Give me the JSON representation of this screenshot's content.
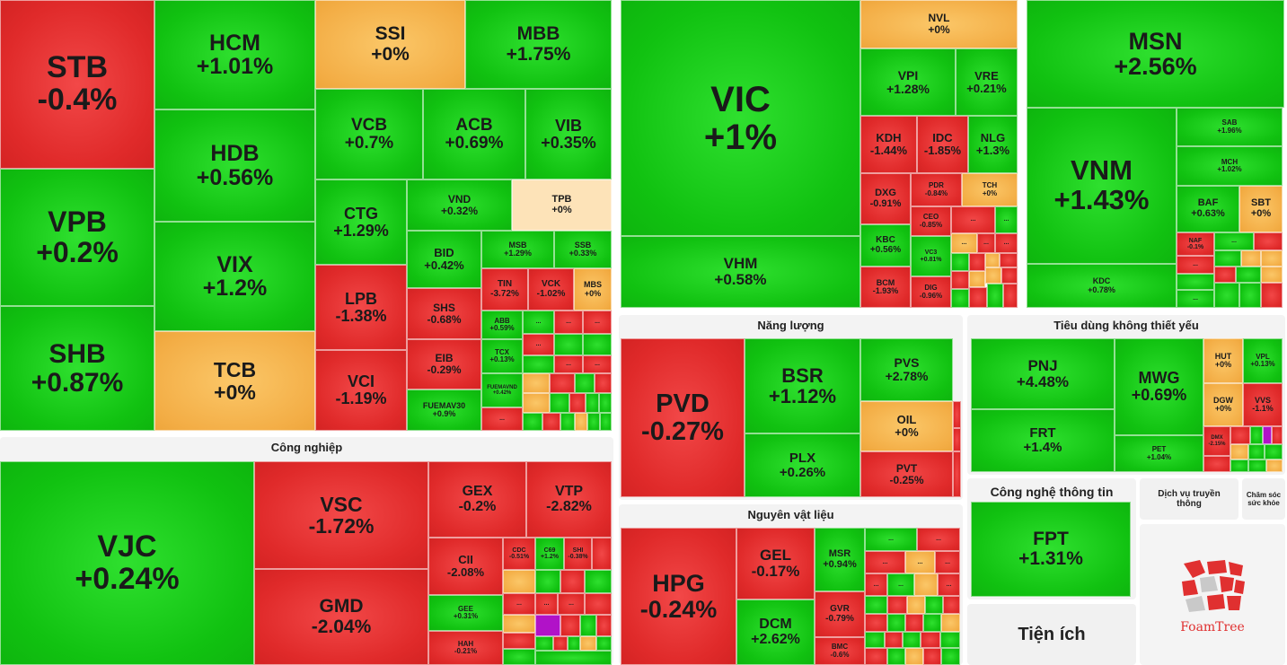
{
  "colors": {
    "up": "#11c211",
    "down": "#e02a2a",
    "flat": "#f3ad45",
    "ceiling": "#b112c8"
  },
  "sections": {
    "industrial": "Công nghiệp",
    "energy": "Năng lượng",
    "consumer_discretionary": "Tiêu dùng không thiết yếu",
    "materials": "Nguyên vật liệu",
    "it": "Công nghệ thông tin",
    "media": "Dịch vụ truyền thông",
    "health": "Chăm sóc sức khỏe",
    "utilities": "Tiện ích"
  },
  "logo": {
    "text": "FoamTree",
    "icon": "foamtree-icon"
  },
  "finance": [
    {
      "s": "STB",
      "c": "-0.4%"
    },
    {
      "s": "VPB",
      "c": "+0.2%"
    },
    {
      "s": "SHB",
      "c": "+0.87%"
    },
    {
      "s": "HCM",
      "c": "+1.01%"
    },
    {
      "s": "HDB",
      "c": "+0.56%"
    },
    {
      "s": "VIX",
      "c": "+1.2%"
    },
    {
      "s": "TCB",
      "c": "+0%"
    },
    {
      "s": "SSI",
      "c": "+0%"
    },
    {
      "s": "MBB",
      "c": "+1.75%"
    },
    {
      "s": "VCB",
      "c": "+0.7%"
    },
    {
      "s": "ACB",
      "c": "+0.69%"
    },
    {
      "s": "VIB",
      "c": "+0.35%"
    },
    {
      "s": "CTG",
      "c": "+1.29%"
    },
    {
      "s": "LPB",
      "c": "-1.38%"
    },
    {
      "s": "VCI",
      "c": "-1.19%"
    },
    {
      "s": "VND",
      "c": "+0.32%"
    },
    {
      "s": "TPB",
      "c": "+0%"
    },
    {
      "s": "BID",
      "c": "+0.42%"
    },
    {
      "s": "MSB",
      "c": "+1.29%"
    },
    {
      "s": "SSB",
      "c": "+0.33%"
    },
    {
      "s": "SHS",
      "c": "-0.68%"
    },
    {
      "s": "TIN",
      "c": "-3.72%"
    },
    {
      "s": "VCK",
      "c": "-1.02%"
    },
    {
      "s": "MBS",
      "c": "+0%"
    },
    {
      "s": "EIB",
      "c": "-0.29%"
    },
    {
      "s": "ABB",
      "c": "+0.59%"
    },
    {
      "s": "TCX",
      "c": "+0.13%"
    },
    {
      "s": "FUEMAV30",
      "c": "+0.9%"
    },
    {
      "s": "FUEMAVND",
      "c": "+0.42%"
    }
  ],
  "real_estate": [
    {
      "s": "VIC",
      "c": "+1%"
    },
    {
      "s": "VHM",
      "c": "+0.58%"
    },
    {
      "s": "NVL",
      "c": "+0%"
    },
    {
      "s": "VPI",
      "c": "+1.28%"
    },
    {
      "s": "VRE",
      "c": "+0.21%"
    },
    {
      "s": "KDH",
      "c": "-1.44%"
    },
    {
      "s": "IDC",
      "c": "-1.85%"
    },
    {
      "s": "NLG",
      "c": "+1.3%"
    },
    {
      "s": "DXG",
      "c": "-0.91%"
    },
    {
      "s": "PDR",
      "c": "-0.84%"
    },
    {
      "s": "TCH",
      "c": "+0%"
    },
    {
      "s": "CEO",
      "c": "-0.85%"
    },
    {
      "s": "KBC",
      "c": "+0.56%"
    },
    {
      "s": "VC3",
      "c": "+0.81%"
    },
    {
      "s": "BCM",
      "c": "-1.93%"
    },
    {
      "s": "DIG",
      "c": "-0.96%"
    }
  ],
  "staples": [
    {
      "s": "MSN",
      "c": "+2.56%"
    },
    {
      "s": "VNM",
      "c": "+1.43%"
    },
    {
      "s": "SAB",
      "c": "+1.96%"
    },
    {
      "s": "MCH",
      "c": "+1.02%"
    },
    {
      "s": "BAF",
      "c": "+0.63%"
    },
    {
      "s": "SBT",
      "c": "+0%"
    },
    {
      "s": "NAF",
      "c": "-0.1%"
    },
    {
      "s": "KDC",
      "c": "+0.78%"
    }
  ],
  "industrial": [
    {
      "s": "VJC",
      "c": "+0.24%"
    },
    {
      "s": "VSC",
      "c": "-1.72%"
    },
    {
      "s": "GMD",
      "c": "-2.04%"
    },
    {
      "s": "GEX",
      "c": "-0.2%"
    },
    {
      "s": "VTP",
      "c": "-2.82%"
    },
    {
      "s": "CII",
      "c": "-2.08%"
    },
    {
      "s": "CDC",
      "c": "-0.51%"
    },
    {
      "s": "C69",
      "c": "+1.2%"
    },
    {
      "s": "SHI",
      "c": "-0.38%"
    },
    {
      "s": "GEE",
      "c": "+0.31%"
    },
    {
      "s": "HAH",
      "c": "-0.21%"
    }
  ],
  "energy": [
    {
      "s": "PVD",
      "c": "-0.27%"
    },
    {
      "s": "BSR",
      "c": "+1.12%"
    },
    {
      "s": "PVS",
      "c": "+2.78%"
    },
    {
      "s": "OIL",
      "c": "+0%"
    },
    {
      "s": "PLX",
      "c": "+0.26%"
    },
    {
      "s": "PVT",
      "c": "-0.25%"
    }
  ],
  "materials": [
    {
      "s": "HPG",
      "c": "-0.24%"
    },
    {
      "s": "GEL",
      "c": "-0.17%"
    },
    {
      "s": "MSR",
      "c": "+0.94%"
    },
    {
      "s": "DCM",
      "c": "+2.62%"
    },
    {
      "s": "GVR",
      "c": "-0.79%"
    },
    {
      "s": "BMC",
      "c": "-0.6%"
    }
  ],
  "discretionary": [
    {
      "s": "PNJ",
      "c": "+4.48%"
    },
    {
      "s": "MWG",
      "c": "+0.69%"
    },
    {
      "s": "HUT",
      "c": "+0%"
    },
    {
      "s": "VPL",
      "c": "+0.13%"
    },
    {
      "s": "FRT",
      "c": "+1.4%"
    },
    {
      "s": "DGW",
      "c": "+0%"
    },
    {
      "s": "VVS",
      "c": "-1.1%"
    },
    {
      "s": "PET",
      "c": "+1.04%"
    },
    {
      "s": "DMX",
      "c": "-2.15%"
    }
  ],
  "it": [
    {
      "s": "FPT",
      "c": "+1.31%"
    }
  ],
  "ellipsis": "..."
}
